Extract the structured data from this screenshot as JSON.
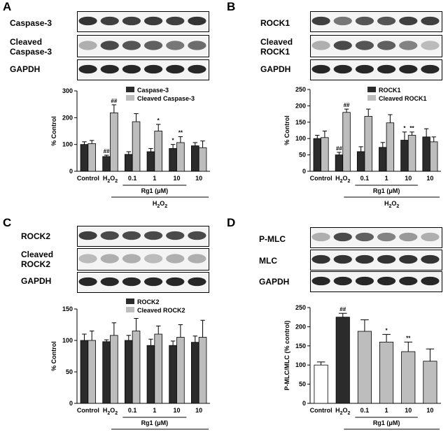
{
  "panels": [
    {
      "letter": "A",
      "blot_labels": [
        [
          "Caspase-3"
        ],
        [
          "Cleaved",
          "Caspase-3"
        ],
        [
          "GAPDH"
        ]
      ],
      "blot_intensities": [
        [
          0.85,
          0.8,
          0.8,
          0.82,
          0.8,
          0.85
        ],
        [
          0.3,
          0.75,
          0.7,
          0.65,
          0.55,
          0.6
        ],
        [
          0.9,
          0.9,
          0.9,
          0.9,
          0.9,
          0.9
        ]
      ]
    },
    {
      "letter": "B",
      "blot_labels": [
        [
          "ROCK1"
        ],
        [
          "Cleaved",
          "ROCK1"
        ],
        [
          "GAPDH"
        ]
      ],
      "blot_intensities": [
        [
          0.8,
          0.55,
          0.7,
          0.7,
          0.8,
          0.8
        ],
        [
          0.3,
          0.75,
          0.7,
          0.65,
          0.5,
          0.25
        ],
        [
          0.9,
          0.9,
          0.9,
          0.9,
          0.9,
          0.9
        ]
      ]
    },
    {
      "letter": "C",
      "blot_labels": [
        [
          "ROCK2"
        ],
        [
          "Cleaved",
          "ROCK2"
        ],
        [
          "GAPDH"
        ]
      ],
      "blot_intensities": [
        [
          0.8,
          0.75,
          0.75,
          0.75,
          0.75,
          0.75
        ],
        [
          0.25,
          0.3,
          0.3,
          0.25,
          0.3,
          0.3
        ],
        [
          0.9,
          0.9,
          0.9,
          0.9,
          0.9,
          0.9
        ]
      ]
    },
    {
      "letter": "D",
      "blot_labels": [
        [
          "P-MLC"
        ],
        [
          "MLC"
        ],
        [
          "GAPDH"
        ]
      ],
      "blot_intensities": [
        [
          0.3,
          0.75,
          0.65,
          0.5,
          0.4,
          0.3
        ],
        [
          0.85,
          0.85,
          0.85,
          0.85,
          0.85,
          0.85
        ],
        [
          0.9,
          0.9,
          0.9,
          0.9,
          0.9,
          0.9
        ]
      ]
    }
  ],
  "chart_data": [
    {
      "type": "bar",
      "panel": "A",
      "categories": [
        "Control",
        "H2O2",
        "0.1",
        "1",
        "10",
        "10"
      ],
      "category_display": [
        [
          "Control"
        ],
        [
          "H",
          "2",
          "O",
          "2"
        ],
        [
          "0.1"
        ],
        [
          "1"
        ],
        [
          "10"
        ],
        [
          "10"
        ]
      ],
      "ylabel": "% Control",
      "ylim": [
        0,
        300
      ],
      "yticks": [
        "0",
        "100",
        "200",
        "300"
      ],
      "group_label": "Rg1 (μM)",
      "treatment_label": [
        "H",
        "2",
        "O",
        "2"
      ],
      "series": [
        {
          "name": "Caspase-3",
          "color": "#2b2b2b",
          "values": [
            100,
            55,
            63,
            73,
            85,
            95
          ],
          "errors": [
            10,
            5,
            10,
            12,
            15,
            12
          ],
          "marks": [
            "",
            "##",
            "",
            "",
            "*",
            ""
          ]
        },
        {
          "name": "Cleaved Caspase-3",
          "color": "#bdbdbd",
          "values": [
            103,
            218,
            185,
            150,
            107,
            88
          ],
          "errors": [
            12,
            30,
            30,
            25,
            22,
            25
          ],
          "marks": [
            "",
            "##",
            "",
            "*",
            "**",
            ""
          ]
        }
      ]
    },
    {
      "type": "bar",
      "panel": "B",
      "categories": [
        "Control",
        "H2O2",
        "0.1",
        "1",
        "10",
        "10"
      ],
      "category_display": [
        [
          "Control"
        ],
        [
          "H",
          "2",
          "O",
          "2"
        ],
        [
          "0.1"
        ],
        [
          "1"
        ],
        [
          "10"
        ],
        [
          "10"
        ]
      ],
      "ylabel": "% Control",
      "ylim": [
        0,
        250
      ],
      "yticks": [
        "0",
        "50",
        "100",
        "150",
        "200",
        "250"
      ],
      "group_label": "Rg1 (μM)",
      "treatment_label": [
        "H",
        "2",
        "O",
        "2"
      ],
      "series": [
        {
          "name": "ROCK1",
          "color": "#2b2b2b",
          "values": [
            100,
            50,
            60,
            73,
            95,
            105
          ],
          "errors": [
            10,
            8,
            15,
            15,
            25,
            25
          ],
          "marks": [
            "",
            "##",
            "",
            "",
            "*",
            ""
          ]
        },
        {
          "name": "Cleaved ROCK1",
          "color": "#bdbdbd",
          "values": [
            103,
            180,
            168,
            148,
            110,
            90
          ],
          "errors": [
            20,
            10,
            22,
            25,
            10,
            15
          ],
          "marks": [
            "",
            "##",
            "",
            "",
            "**",
            ""
          ]
        }
      ]
    },
    {
      "type": "bar",
      "panel": "C",
      "categories": [
        "Control",
        "H2O2",
        "0.1",
        "1",
        "10",
        "10"
      ],
      "category_display": [
        [
          "Control"
        ],
        [
          "H",
          "2",
          "O",
          "2"
        ],
        [
          "0.1"
        ],
        [
          "1"
        ],
        [
          "10"
        ],
        [
          "10"
        ]
      ],
      "ylabel": "% Control",
      "ylim": [
        0,
        150
      ],
      "yticks": [
        "0",
        "50",
        "100",
        "150"
      ],
      "group_label": "Rg1 (μM)",
      "treatment_label": [
        "H",
        "2",
        "O",
        "2"
      ],
      "series": [
        {
          "name": "ROCK2",
          "color": "#2b2b2b",
          "values": [
            100,
            98,
            100,
            92,
            92,
            97
          ],
          "errors": [
            10,
            3,
            8,
            10,
            7,
            10
          ],
          "marks": [
            "",
            "",
            "",
            "",
            "",
            ""
          ]
        },
        {
          "name": "Cleaved ROCK2",
          "color": "#bdbdbd",
          "values": [
            100,
            108,
            115,
            110,
            105,
            105
          ],
          "errors": [
            15,
            20,
            20,
            13,
            20,
            27
          ],
          "marks": [
            "",
            "",
            "",
            "",
            "",
            ""
          ]
        }
      ]
    },
    {
      "type": "bar",
      "panel": "D",
      "categories": [
        "Control",
        "H2O2",
        "0.1",
        "1",
        "10",
        "10"
      ],
      "category_display": [
        [
          "Control"
        ],
        [
          "H",
          "2",
          "O",
          "2"
        ],
        [
          "0.1"
        ],
        [
          "1"
        ],
        [
          "10"
        ],
        [
          "10"
        ]
      ],
      "ylabel": "P-MLC/MLC (% control)",
      "ylim": [
        0,
        250
      ],
      "yticks": [
        "0",
        "50",
        "100",
        "150",
        "200",
        "250"
      ],
      "group_label": "Rg1 (μM)",
      "treatment_label": [
        "H",
        "2",
        "O",
        "2"
      ],
      "series": [
        {
          "name": "",
          "colors": [
            "#ffffff",
            "#2b2b2b",
            "#bdbdbd",
            "#bdbdbd",
            "#bdbdbd",
            "#bdbdbd"
          ],
          "values": [
            100,
            225,
            188,
            160,
            135,
            110
          ],
          "errors": [
            8,
            10,
            30,
            20,
            25,
            32
          ],
          "marks": [
            "",
            "##",
            "",
            "*",
            "**",
            ""
          ]
        }
      ]
    }
  ]
}
